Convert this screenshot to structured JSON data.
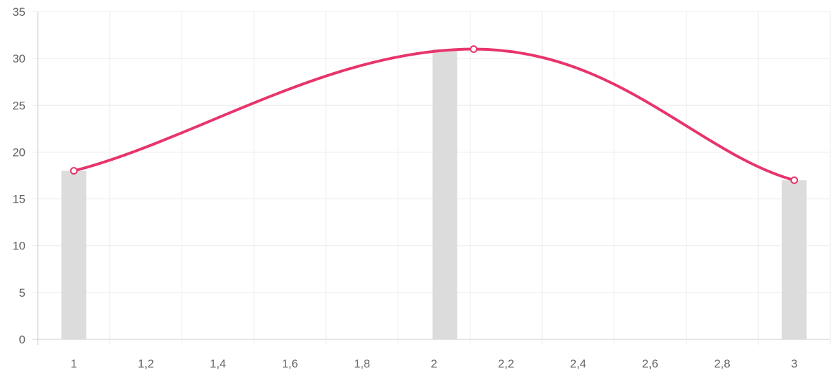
{
  "chart_data": {
    "type": "bar+line",
    "title": "",
    "xlabel": "",
    "ylabel": "",
    "x_ticks": [
      "1",
      "1,2",
      "1,4",
      "1,6",
      "1,8",
      "2",
      "2,2",
      "2,4",
      "2,6",
      "2,8",
      "3"
    ],
    "y_ticks": [
      "0",
      "5",
      "10",
      "15",
      "20",
      "25",
      "30",
      "35"
    ],
    "xlim": [
      0.9,
      3.1
    ],
    "ylim": [
      0,
      35
    ],
    "grid": true,
    "legend": "none",
    "bar_series": {
      "x": [
        1,
        2.03,
        3
      ],
      "values": [
        18,
        31,
        17
      ],
      "color": "#dcdcdc"
    },
    "line_series": {
      "x": [
        1,
        2.11,
        3
      ],
      "values": [
        18,
        31,
        17
      ],
      "color": "#e8346b",
      "smooth": true,
      "markers": true
    }
  }
}
